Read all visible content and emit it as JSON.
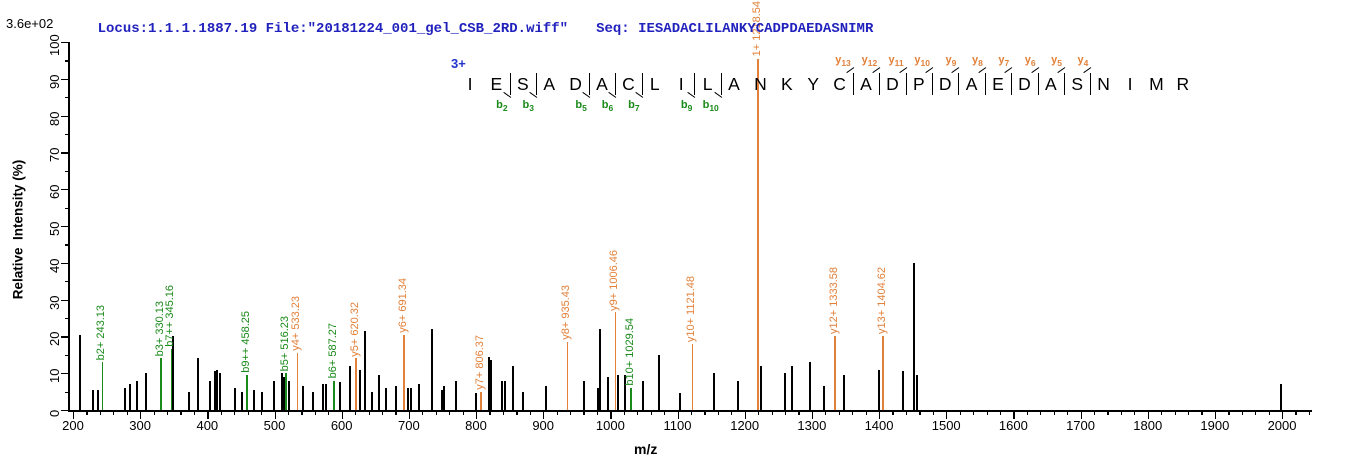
{
  "header": {
    "locus_file": "Locus:1.1.1.1887.19 File:\"20181224_001_gel_CSB_2RD.wiff\"",
    "seq": "Seq: IESADACLILANKYCADPDAEDASNIMR",
    "intensity_scale": "3.6e+02"
  },
  "colors": {
    "b_ion": "#1a8a1a",
    "y_ion": "#e2813a",
    "peak": "#000000",
    "header_text": "#2121bd",
    "precursor": "#2233cc"
  },
  "ladder": {
    "precursor_charge": "3+",
    "residues": [
      "I",
      "E",
      "S",
      "A",
      "D",
      "A",
      "C",
      "L",
      "I",
      "L",
      "A",
      "N",
      "K",
      "Y",
      "C",
      "A",
      "D",
      "P",
      "D",
      "A",
      "E",
      "D",
      "A",
      "S",
      "N",
      "I",
      "M",
      "R"
    ],
    "b_boundaries": [
      {
        "before_residue": 3,
        "label": "b2"
      },
      {
        "before_residue": 4,
        "label": "b3"
      },
      {
        "before_residue": 6,
        "label": "b5"
      },
      {
        "before_residue": 7,
        "label": "b6"
      },
      {
        "before_residue": 8,
        "label": "b7"
      },
      {
        "before_residue": 10,
        "label": "b9"
      },
      {
        "before_residue": 11,
        "label": "b10"
      }
    ],
    "y_boundaries": [
      {
        "before_residue": 16,
        "label": "y13"
      },
      {
        "before_residue": 17,
        "label": "y12"
      },
      {
        "before_residue": 18,
        "label": "y11"
      },
      {
        "before_residue": 19,
        "label": "y10"
      },
      {
        "before_residue": 20,
        "label": "y9"
      },
      {
        "before_residue": 21,
        "label": "y8"
      },
      {
        "before_residue": 22,
        "label": "y7"
      },
      {
        "before_residue": 23,
        "label": "y6"
      },
      {
        "before_residue": 24,
        "label": "y5"
      },
      {
        "before_residue": 25,
        "label": "y4"
      }
    ]
  },
  "chart_data": {
    "type": "bar",
    "subtype": "ms2-fragment-spectrum",
    "title": "",
    "xlabel": "m/z",
    "ylabel": "Relative  Intensity (%)",
    "x_range": [
      200,
      2042
    ],
    "y_range": [
      0,
      100
    ],
    "x_major_tick_step": 100,
    "x_minor_tick_step": 20,
    "x_major_ticks": [
      200,
      300,
      400,
      500,
      600,
      700,
      800,
      900,
      1000,
      1100,
      1200,
      1300,
      1400,
      1500,
      1600,
      1700,
      1800,
      1900,
      2000
    ],
    "y_major_tick_step": 10,
    "y_minor_tick_step": 5,
    "y_major_ticks": [
      0,
      10,
      20,
      30,
      40,
      50,
      60,
      70,
      80,
      90,
      100
    ],
    "grid": false,
    "labeled_peaks": [
      {
        "mz": 243.13,
        "pct": 13.0,
        "ion": "b",
        "label": "b2+ 243.13"
      },
      {
        "mz": 330.13,
        "pct": 14.0,
        "ion": "b",
        "label": "b3+ 330.13"
      },
      {
        "mz": 345.16,
        "pct": 16.5,
        "ion": "b",
        "label": "b7++ 345.16"
      },
      {
        "mz": 458.25,
        "pct": 9.5,
        "ion": "b",
        "label": "b9++ 458.25"
      },
      {
        "mz": 516.23,
        "pct": 10.0,
        "ion": "b",
        "label": "b5+ 516.23"
      },
      {
        "mz": 533.23,
        "pct": 15.5,
        "ion": "y",
        "label": "y4+ 533.23"
      },
      {
        "mz": 587.27,
        "pct": 8.0,
        "ion": "b",
        "label": "b6+ 587.27"
      },
      {
        "mz": 620.32,
        "pct": 14.0,
        "ion": "y",
        "label": "y5+ 620.32"
      },
      {
        "mz": 691.34,
        "pct": 20.5,
        "ion": "y",
        "label": "y6+ 691.34"
      },
      {
        "mz": 806.37,
        "pct": 5.0,
        "ion": "y",
        "label": "y7+ 806.37"
      },
      {
        "mz": 935.43,
        "pct": 18.5,
        "ion": "y",
        "label": "y8+ 935.43"
      },
      {
        "mz": 1006.46,
        "pct": 26.5,
        "ion": "y",
        "label": "y9+ 1006.46"
      },
      {
        "mz": 1029.54,
        "pct": 6.0,
        "ion": "b",
        "label": "b10+ 1029.54"
      },
      {
        "mz": 1121.48,
        "pct": 18.0,
        "ion": "y",
        "label": "y10+ 1121.48"
      },
      {
        "mz": 1218.54,
        "pct": 95.5,
        "ion": "y",
        "label": "1+ 1218.54"
      },
      {
        "mz": 1333.58,
        "pct": 20.0,
        "ion": "y",
        "label": "y12+ 1333.58"
      },
      {
        "mz": 1404.62,
        "pct": 20.0,
        "ion": "y",
        "label": "y13+ 1404.62"
      }
    ],
    "unlabeled_peaks": [
      [
        210,
        20.5
      ],
      [
        230,
        5.5
      ],
      [
        237,
        5.5
      ],
      [
        278,
        6
      ],
      [
        285,
        7
      ],
      [
        296,
        8
      ],
      [
        309,
        10
      ],
      [
        349,
        20
      ],
      [
        372,
        5
      ],
      [
        386,
        14
      ],
      [
        404,
        8
      ],
      [
        411,
        10.5
      ],
      [
        415,
        11
      ],
      [
        419,
        10
      ],
      [
        441,
        6
      ],
      [
        452,
        5
      ],
      [
        469,
        5.5
      ],
      [
        481,
        5
      ],
      [
        499,
        8
      ],
      [
        511,
        10
      ],
      [
        514,
        9
      ],
      [
        521,
        8
      ],
      [
        543,
        6.5
      ],
      [
        558,
        5
      ],
      [
        572,
        7
      ],
      [
        576,
        7
      ],
      [
        598,
        7.5
      ],
      [
        613,
        12
      ],
      [
        627,
        11
      ],
      [
        634,
        21.5
      ],
      [
        645,
        5
      ],
      [
        655,
        9.5
      ],
      [
        666,
        6
      ],
      [
        681,
        6.5
      ],
      [
        699,
        6
      ],
      [
        703,
        6
      ],
      [
        715,
        7
      ],
      [
        734,
        22
      ],
      [
        749,
        5.5
      ],
      [
        753,
        6.5
      ],
      [
        770,
        8
      ],
      [
        800,
        4.5
      ],
      [
        819,
        14.5
      ],
      [
        823,
        13.5
      ],
      [
        839,
        8
      ],
      [
        843,
        8
      ],
      [
        855,
        12
      ],
      [
        870,
        5
      ],
      [
        904,
        6.5
      ],
      [
        961,
        8
      ],
      [
        981,
        6
      ],
      [
        984,
        22
      ],
      [
        997,
        9
      ],
      [
        1012,
        9.5
      ],
      [
        1022,
        9.5
      ],
      [
        1049,
        8
      ],
      [
        1073,
        15
      ],
      [
        1104,
        4.5
      ],
      [
        1155,
        10
      ],
      [
        1190,
        8
      ],
      [
        1224,
        12
      ],
      [
        1260,
        10
      ],
      [
        1271,
        12
      ],
      [
        1297,
        13
      ],
      [
        1318,
        6.5
      ],
      [
        1348,
        9.5
      ],
      [
        1400,
        11
      ],
      [
        1436,
        10.5
      ],
      [
        1452,
        40
      ],
      [
        1456,
        9.5
      ],
      [
        1998,
        7
      ]
    ]
  }
}
